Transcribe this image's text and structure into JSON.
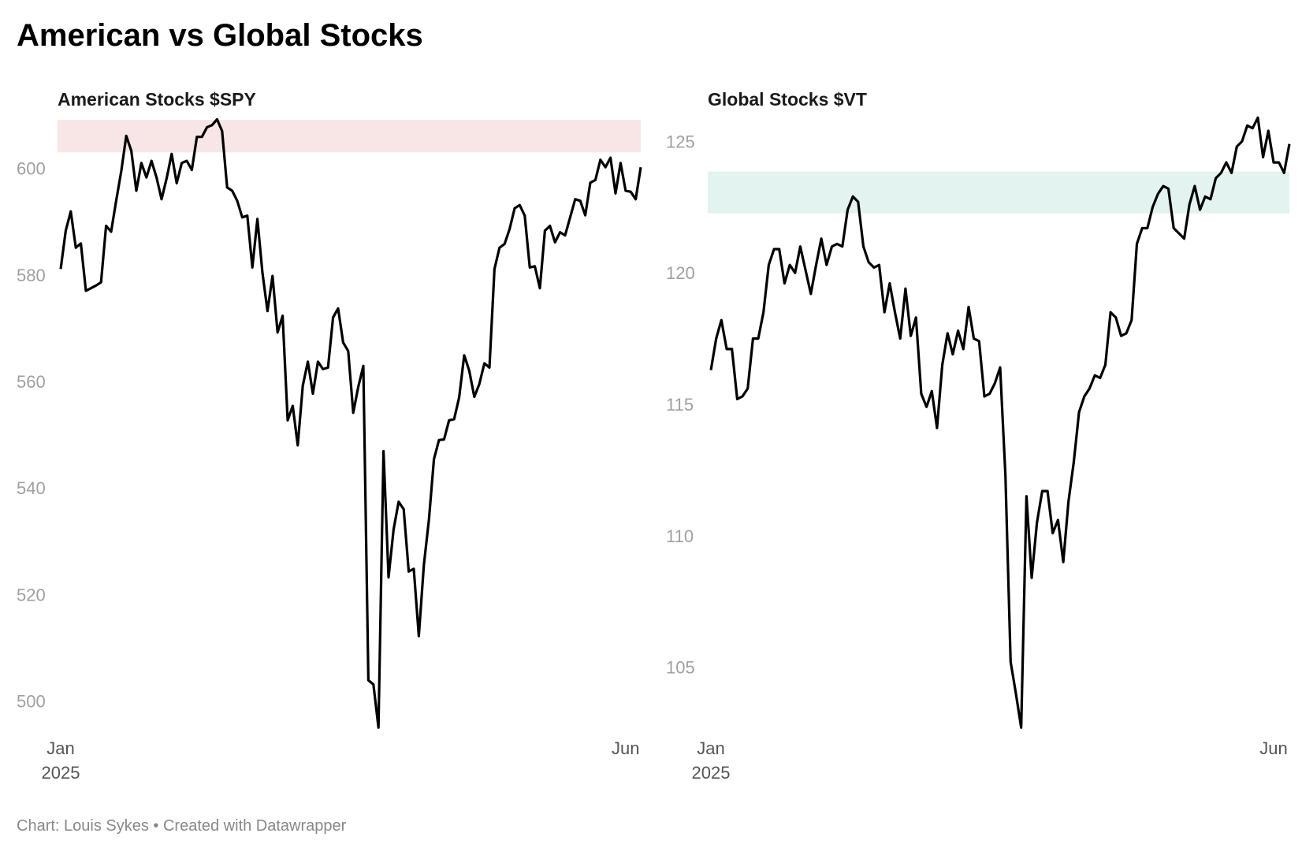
{
  "title": "American vs Global Stocks",
  "footer": "Chart: Louis Sykes • Created with Datawrapper",
  "chart_data": [
    {
      "type": "line",
      "title": "American Stocks $SPY",
      "color": "#000000",
      "band": [
        603.0,
        609.1
      ],
      "band_color": "#f8e6e6",
      "ylim": [
        494,
        610
      ],
      "yticks": [
        500,
        520,
        540,
        560,
        580,
        600
      ],
      "categories": [
        "Jan 2025",
        null,
        null,
        null,
        null,
        null,
        null,
        null,
        null,
        null,
        null,
        null,
        null,
        null,
        null,
        null,
        null,
        null,
        null,
        null,
        null,
        null,
        null,
        null,
        null,
        null,
        null,
        null,
        null,
        null,
        null,
        null,
        null,
        null,
        null,
        null,
        null,
        null,
        null,
        null,
        null,
        null,
        null,
        null,
        null,
        null,
        null,
        null,
        null,
        null,
        null,
        null,
        null,
        null,
        null,
        null,
        null,
        null,
        null,
        null,
        null,
        null,
        null,
        null,
        null,
        null,
        null,
        null,
        null,
        null,
        null,
        null,
        null,
        null,
        null,
        null,
        null,
        null,
        null,
        null,
        null,
        null,
        null,
        null,
        null,
        null,
        null,
        null,
        null,
        null,
        null,
        null,
        null,
        null,
        null,
        null,
        null,
        null,
        null,
        null,
        null,
        null,
        null,
        null,
        null,
        null,
        null,
        null,
        null,
        null,
        null,
        null,
        "Jun",
        null,
        null,
        null
      ],
      "series": [
        {
          "name": "SPY",
          "color": "#000000",
          "values": [
            581.1,
            588.3,
            591.9,
            585.1,
            585.9,
            577.0,
            577.5,
            578.0,
            578.6,
            589.2,
            588.1,
            593.9,
            599.4,
            606.1,
            603.3,
            595.8,
            601.0,
            598.3,
            601.4,
            598.3,
            594.2,
            598.1,
            602.7,
            597.2,
            601.0,
            601.4,
            599.7,
            605.9,
            605.9,
            607.7,
            608.1,
            609.2,
            607.0,
            596.4,
            595.8,
            593.9,
            590.8,
            591.1,
            581.4,
            590.5,
            580.4,
            573.2,
            579.8,
            569.2,
            572.3,
            552.7,
            555.4,
            548.0,
            559.2,
            563.7,
            557.7,
            563.7,
            562.3,
            562.6,
            572.0,
            573.7,
            567.3,
            565.7,
            554.1,
            559.0,
            562.9,
            503.9,
            503.1,
            495.0,
            546.9,
            523.2,
            532.2,
            537.4,
            536.0,
            524.3,
            524.8,
            512.2,
            525.5,
            534.0,
            545.4,
            549.0,
            549.1,
            552.7,
            552.9,
            557.0,
            564.9,
            562.0,
            557.1,
            559.5,
            563.4,
            562.6,
            581.1,
            585.1,
            585.8,
            588.6,
            592.5,
            593.1,
            591.1,
            581.4,
            581.6,
            577.5,
            588.3,
            589.2,
            586.1,
            588.0,
            587.4,
            590.8,
            594.2,
            593.9,
            591.2,
            597.3,
            597.8,
            601.6,
            600.2,
            602.0,
            595.3,
            601.0,
            595.8,
            595.6,
            594.2,
            600.2
          ]
        }
      ]
    },
    {
      "type": "line",
      "title": "Global Stocks $VT",
      "color": "#000000",
      "band": [
        122.26,
        123.85
      ],
      "band_color": "#e3f3ef",
      "ylim": [
        102.5,
        126
      ],
      "yticks": [
        105,
        110,
        115,
        120,
        125
      ],
      "categories": [
        "Jan 2025",
        null,
        null,
        null,
        null,
        null,
        null,
        null,
        null,
        null,
        null,
        null,
        null,
        null,
        null,
        null,
        null,
        null,
        null,
        null,
        null,
        null,
        null,
        null,
        null,
        null,
        null,
        null,
        null,
        null,
        null,
        null,
        null,
        null,
        null,
        null,
        null,
        null,
        null,
        null,
        null,
        null,
        null,
        null,
        null,
        null,
        null,
        null,
        null,
        null,
        null,
        null,
        null,
        null,
        null,
        null,
        null,
        null,
        null,
        null,
        null,
        null,
        null,
        null,
        null,
        null,
        null,
        null,
        null,
        null,
        null,
        null,
        null,
        null,
        null,
        null,
        null,
        null,
        null,
        null,
        null,
        null,
        null,
        null,
        null,
        null,
        null,
        null,
        null,
        null,
        null,
        null,
        null,
        null,
        null,
        null,
        null,
        null,
        null,
        null,
        null,
        null,
        null,
        null,
        null,
        null,
        null,
        "Jun",
        null,
        null,
        null
      ],
      "series": [
        {
          "name": "VT",
          "color": "#000000",
          "values": [
            116.3,
            117.5,
            118.2,
            117.1,
            117.1,
            115.2,
            115.3,
            115.6,
            117.5,
            117.5,
            118.5,
            120.3,
            120.9,
            120.9,
            119.6,
            120.3,
            120.0,
            121.0,
            120.1,
            119.2,
            120.3,
            121.3,
            120.3,
            121.0,
            121.1,
            121.0,
            122.4,
            122.9,
            122.7,
            121.0,
            120.4,
            120.2,
            120.3,
            118.5,
            119.6,
            118.5,
            117.5,
            119.4,
            117.6,
            118.3,
            115.4,
            114.9,
            115.5,
            114.1,
            116.5,
            117.7,
            116.9,
            117.8,
            117.1,
            118.7,
            117.5,
            117.4,
            115.3,
            115.4,
            115.8,
            116.4,
            112.3,
            105.2,
            104.0,
            102.7,
            111.5,
            108.4,
            110.5,
            111.7,
            111.7,
            110.1,
            110.6,
            109.0,
            111.3,
            112.8,
            114.7,
            115.3,
            115.6,
            116.1,
            116.0,
            116.5,
            118.5,
            118.3,
            117.6,
            117.7,
            118.2,
            121.1,
            121.7,
            121.7,
            122.5,
            123.0,
            123.3,
            123.2,
            121.7,
            121.5,
            121.3,
            122.6,
            123.3,
            122.4,
            122.9,
            122.8,
            123.6,
            123.8,
            124.2,
            123.8,
            124.8,
            125.0,
            125.6,
            125.5,
            125.9,
            124.4,
            125.4,
            124.2,
            124.2,
            123.8,
            124.9
          ]
        }
      ]
    }
  ]
}
